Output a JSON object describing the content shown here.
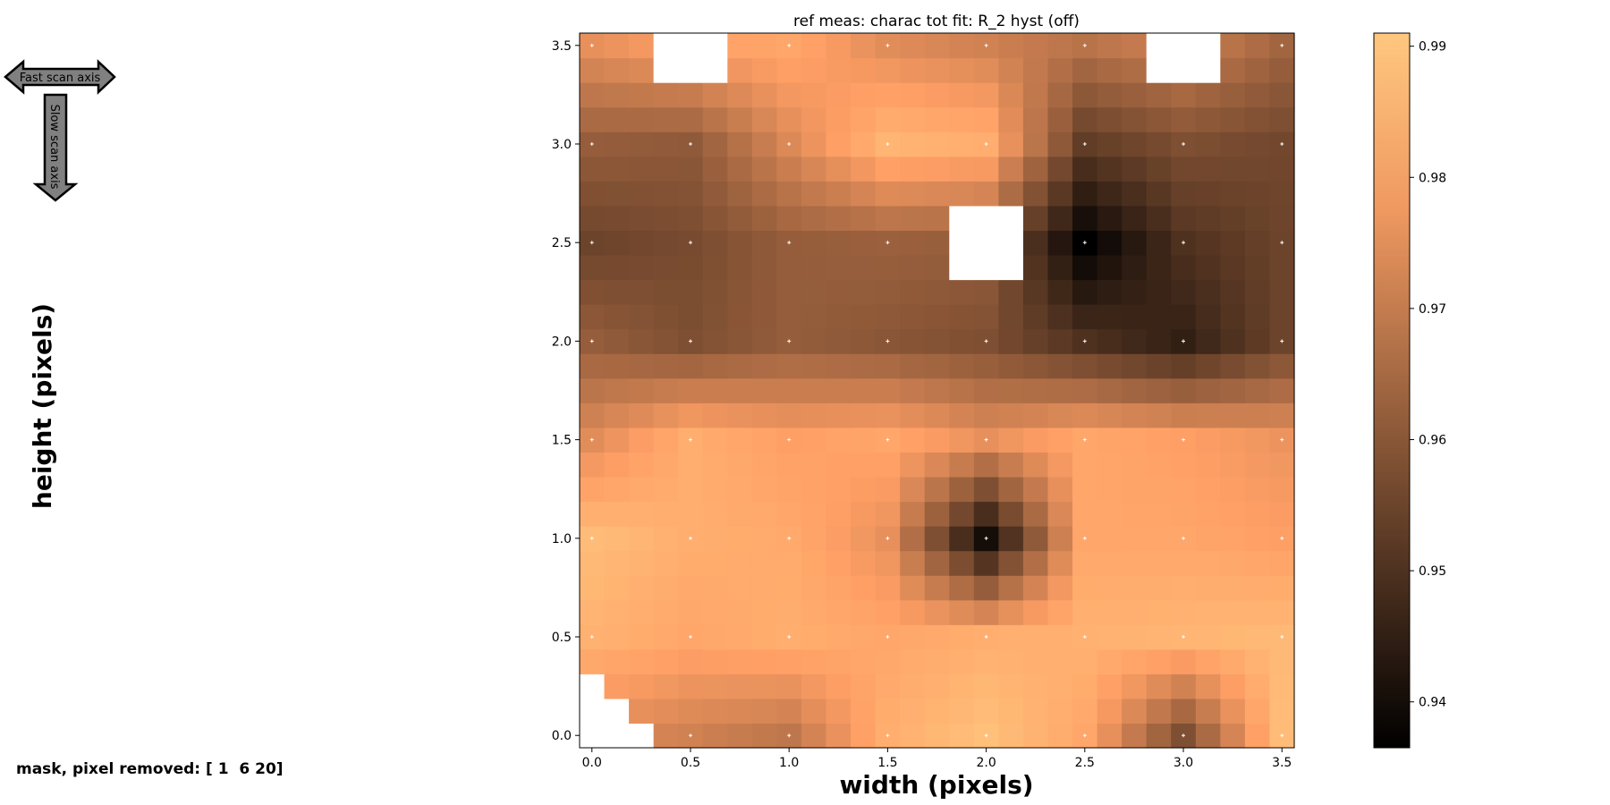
{
  "arrows": {
    "fast": "Fast scan axis",
    "slow": "Slow scan axis"
  },
  "mask_text": "mask, pixel removed: [ 1  6 20]",
  "colors": {
    "cmap": "copper",
    "marker": "#ffffff",
    "masked": "#ffffff"
  },
  "chart_data": {
    "type": "heatmap",
    "title": "ref meas: charac tot fit: R_2 hyst (off)",
    "xlabel": "width (pixels)",
    "ylabel": "height (pixels)",
    "xlim": [
      -0.0625,
      3.5625
    ],
    "ylim": [
      -0.0625,
      3.5625
    ],
    "xticks": [
      0.0,
      0.5,
      1.0,
      1.5,
      2.0,
      2.5,
      3.0,
      3.5
    ],
    "yticks": [
      0.0,
      0.5,
      1.0,
      1.5,
      2.0,
      2.5,
      3.0,
      3.5
    ],
    "xtick_labels": [
      "0.0",
      "0.5",
      "1.0",
      "1.5",
      "2.0",
      "2.5",
      "3.0",
      "3.5"
    ],
    "ytick_labels": [
      "0.0",
      "0.5",
      "1.0",
      "1.5",
      "2.0",
      "2.5",
      "3.0",
      "3.5"
    ],
    "grid_origin": 0.0,
    "grid_step": 0.125,
    "grid_size": 29,
    "cbar_range": [
      0.9365,
      0.991
    ],
    "cbar_ticks": [
      0.94,
      0.95,
      0.96,
      0.97,
      0.98,
      0.99
    ],
    "cbar_tick_labels": [
      "0.94",
      "0.95",
      "0.96",
      "0.97",
      "0.98",
      "0.99"
    ],
    "marker_coords": [
      0.0,
      0.5,
      1.0,
      1.5,
      2.0,
      2.5,
      3.0,
      3.5
    ],
    "nodes_y": [
      3.5,
      3.0,
      2.5,
      2.0,
      1.5,
      1.0,
      0.5,
      0.0
    ],
    "nodes_x": [
      0.0,
      0.5,
      1.0,
      1.5,
      2.0,
      2.5,
      3.0,
      3.5
    ],
    "node_values": [
      [
        0.976,
        0.98,
        0.982,
        0.975,
        0.972,
        0.968,
        0.972,
        0.964
      ],
      [
        0.962,
        0.961,
        0.974,
        0.986,
        0.984,
        0.953,
        0.958,
        0.956
      ],
      [
        0.955,
        0.957,
        0.962,
        0.963,
        0.962,
        0.9365,
        0.95,
        0.955
      ],
      [
        0.962,
        0.958,
        0.962,
        0.96,
        0.958,
        0.95,
        0.945,
        0.955
      ],
      [
        0.975,
        0.984,
        0.98,
        0.982,
        0.976,
        0.982,
        0.98,
        0.977
      ],
      [
        0.988,
        0.984,
        0.983,
        0.976,
        0.94,
        0.982,
        0.982,
        0.98
      ],
      [
        0.985,
        0.982,
        0.984,
        0.982,
        0.984,
        0.985,
        0.986,
        0.987
      ],
      [
        0.975,
        0.972,
        0.969,
        0.984,
        0.989,
        0.982,
        0.958,
        0.988
      ]
    ],
    "masked_regions": [
      {
        "x": [
          0.25,
          0.75
        ],
        "y": [
          3.25,
          3.625
        ]
      },
      {
        "x": [
          2.75,
          3.25
        ],
        "y": [
          3.25,
          3.625
        ]
      },
      {
        "x": [
          1.75,
          2.25
        ],
        "y": [
          2.25,
          2.75
        ]
      }
    ],
    "masked_triangle_columns": [
      3,
      2,
      1,
      0
    ]
  }
}
